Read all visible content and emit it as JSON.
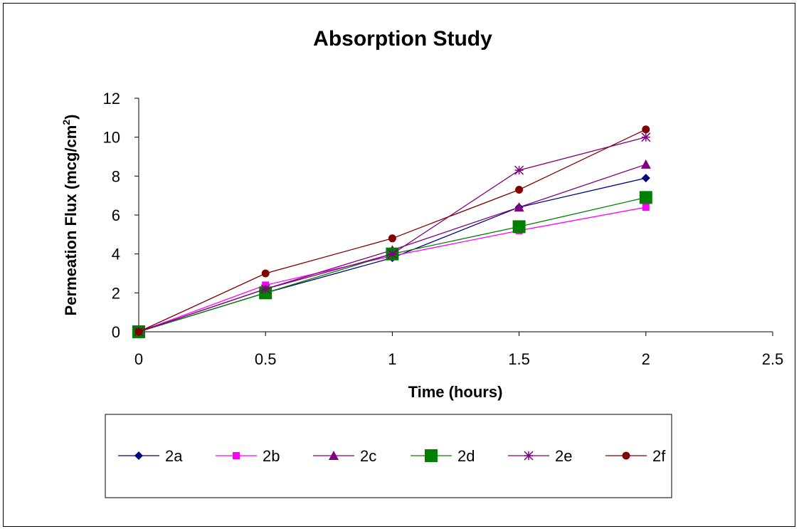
{
  "chart_data": {
    "type": "line",
    "title": "Absorption Study",
    "xlabel": "Time (hours)",
    "ylabel": "Permeation Flux (mcg/cm",
    "ylabel_sup": "2",
    "ylabel_close": ")",
    "xlim": [
      0,
      2.5
    ],
    "ylim": [
      0,
      12
    ],
    "x_ticks": [
      "0",
      "0.5",
      "1",
      "1.5",
      "2",
      "2.5"
    ],
    "y_ticks": [
      "0",
      "2",
      "4",
      "6",
      "8",
      "10",
      "12"
    ],
    "grid": false,
    "legend_position": "bottom",
    "x": [
      0,
      0.5,
      1,
      1.5,
      2
    ],
    "series": [
      {
        "name": "2a",
        "color": "#000080",
        "marker": "diamond",
        "values": [
          0,
          2.0,
          3.8,
          6.4,
          7.9
        ]
      },
      {
        "name": "2b",
        "color": "#ff00ff",
        "marker": "square-small",
        "values": [
          0,
          2.4,
          3.9,
          5.2,
          6.4
        ]
      },
      {
        "name": "2c",
        "color": "#800080",
        "marker": "triangle",
        "values": [
          0,
          2.2,
          4.2,
          6.4,
          8.6
        ]
      },
      {
        "name": "2d",
        "color": "#008000",
        "marker": "square-large",
        "values": [
          0,
          2.0,
          4.0,
          5.4,
          6.9
        ]
      },
      {
        "name": "2e",
        "color": "#800080",
        "marker": "star",
        "values": [
          0,
          2.2,
          4.0,
          8.3,
          10.0
        ]
      },
      {
        "name": "2f",
        "color": "#800000",
        "marker": "circle",
        "values": [
          0,
          3.0,
          4.8,
          7.3,
          10.4
        ]
      }
    ]
  }
}
